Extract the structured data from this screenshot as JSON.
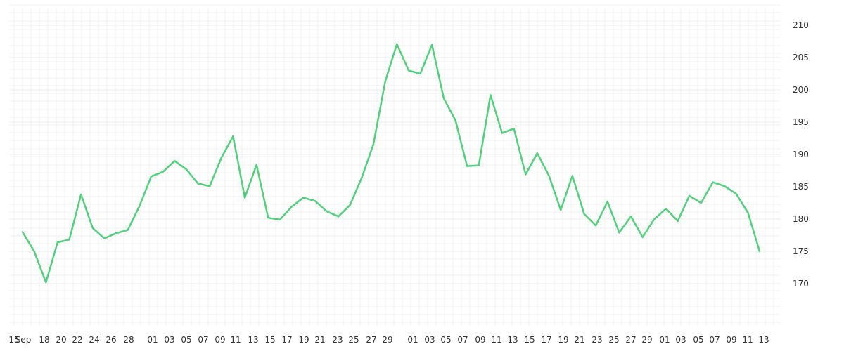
{
  "chart_data": {
    "type": "line",
    "title": "",
    "xlabel": "",
    "ylabel": "",
    "ylim": [
      165,
      212
    ],
    "y_ticks": [
      170,
      175,
      180,
      185,
      190,
      195,
      200,
      205,
      210
    ],
    "y_axis_position": "right",
    "grid": true,
    "x_tick_labels": [
      "15",
      "Sep",
      "18",
      "20",
      "22",
      "24",
      "26",
      "28",
      "01",
      "03",
      "05",
      "07",
      "09",
      "11",
      "13",
      "15",
      "17",
      "19",
      "21",
      "23",
      "25",
      "27",
      "29",
      "01",
      "03",
      "05",
      "07",
      "09",
      "11",
      "13",
      "15",
      "17",
      "19",
      "21",
      "23",
      "25",
      "27",
      "29",
      "01",
      "03",
      "05",
      "07",
      "09",
      "11",
      "13"
    ],
    "colors": {
      "line": "#50d27b",
      "grid": "#ececec",
      "text": "#333333"
    },
    "series": [
      {
        "values": [
          178.0,
          175.0,
          170.2,
          176.4,
          176.8,
          183.8,
          178.6,
          177.0,
          177.8,
          178.3,
          182.0,
          186.6,
          187.3,
          189.0,
          187.7,
          185.5,
          185.1,
          189.5,
          192.8,
          183.3,
          188.4,
          180.2,
          179.9,
          181.9,
          183.3,
          182.8,
          181.2,
          180.4,
          182.2,
          186.4,
          191.6,
          201.3,
          207.1,
          203.0,
          202.5,
          207.0,
          198.7,
          195.3,
          188.2,
          188.3,
          199.2,
          193.3,
          194.0,
          186.9,
          190.2,
          186.7,
          181.4,
          186.7,
          180.8,
          179.0,
          182.7,
          177.9,
          180.4,
          177.2,
          180.0,
          181.6,
          179.7,
          183.6,
          182.5,
          185.7,
          185.1,
          183.9,
          181.0,
          175.0
        ]
      }
    ]
  }
}
